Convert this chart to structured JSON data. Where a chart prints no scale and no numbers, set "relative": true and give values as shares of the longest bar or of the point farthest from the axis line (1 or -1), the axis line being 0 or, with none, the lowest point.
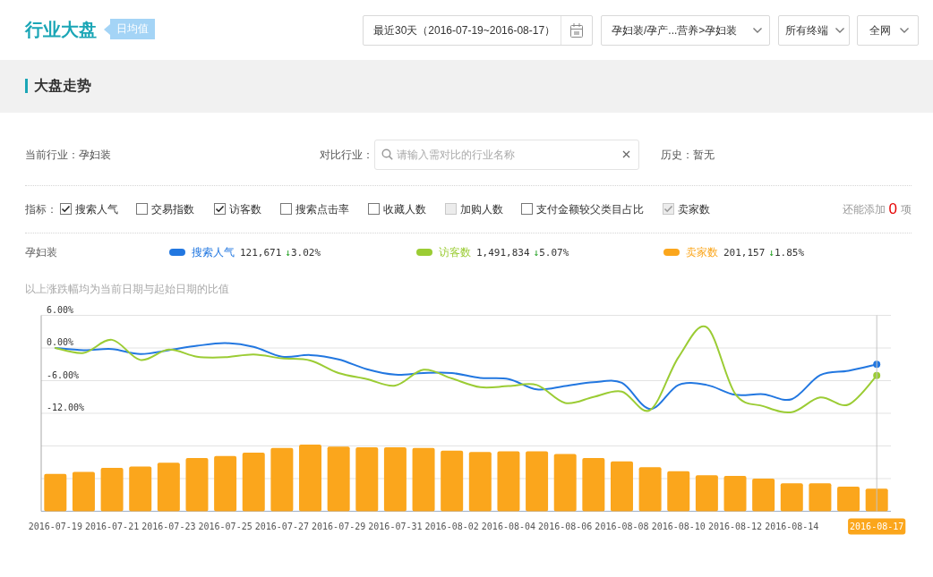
{
  "chart_data": [
    {
      "type": "line",
      "title": "行业大盘",
      "subtitle": "大盘走势",
      "categories": [
        "2016-07-19",
        null,
        "2016-07-21",
        null,
        "2016-07-23",
        null,
        "2016-07-25",
        null,
        "2016-07-27",
        null,
        "2016-07-29",
        null,
        "2016-07-31",
        null,
        "2016-08-02",
        null,
        "2016-08-04",
        null,
        "2016-08-06",
        null,
        "2016-08-08",
        null,
        "2016-08-10",
        null,
        "2016-08-12",
        null,
        "2016-08-14",
        null,
        null,
        "2016-08-17"
      ],
      "series": [
        {
          "name": "搜索人气",
          "color": "#2277e0",
          "values": [
            0,
            -0.4,
            -0.2,
            -1.1,
            -0.4,
            0.4,
            0.9,
            0.2,
            -1.6,
            -1.3,
            -2.1,
            -3.9,
            -4.9,
            -4.6,
            -4.6,
            -5.5,
            -5.7,
            -7.6,
            -7.0,
            -6.3,
            -6.4,
            -11.2,
            -6.8,
            -6.8,
            -8.6,
            -8.5,
            -9.4,
            -5.0,
            -4.2,
            -3.02
          ]
        },
        {
          "name": "访客数",
          "color": "#9bcc34",
          "values": [
            0,
            -0.9,
            1.5,
            -2.2,
            -0.3,
            -1.6,
            -1.7,
            -1.2,
            -1.9,
            -2.3,
            -4.6,
            -5.7,
            -6.9,
            -4.0,
            -5.6,
            -7.2,
            -7.0,
            -6.8,
            -10.1,
            -9.0,
            -8.0,
            -11.4,
            -1.7,
            3.8,
            -8.4,
            -10.7,
            -11.8,
            -9.1,
            -10.4,
            -5.07
          ]
        },
        {
          "type": "scatter",
          "values": [
            null,
            null,
            null,
            null,
            null,
            null,
            null,
            null,
            null,
            null,
            null,
            null,
            null,
            null,
            null,
            null,
            null,
            null,
            null,
            null,
            null,
            null,
            null,
            null,
            null,
            null,
            null,
            null,
            null,
            -3.02
          ],
          "color": "#2277e0",
          "marker": "circle"
        },
        {
          "type": "scatter",
          "values": [
            null,
            null,
            null,
            null,
            null,
            null,
            null,
            null,
            null,
            null,
            null,
            null,
            null,
            null,
            null,
            null,
            null,
            null,
            null,
            null,
            null,
            null,
            null,
            null,
            null,
            null,
            null,
            null,
            null,
            -5.07
          ],
          "color": "#9bcc34",
          "marker": "circle"
        }
      ],
      "ylim": [
        -30,
        6
      ],
      "yticks": [
        {
          "value": 6,
          "label": "6.00%"
        },
        {
          "value": 0,
          "label": "0.00%"
        },
        {
          "value": -6,
          "label": "-6.00%"
        },
        {
          "value": -12,
          "label": "-12.00%"
        },
        {
          "value": -18,
          "label": null
        },
        {
          "value": -24,
          "label": null
        }
      ],
      "grid": "y",
      "legend": "top",
      "tick_labels": "y",
      "ref_lines": [
        {
          "axis": "x",
          "value": "2016-08-17",
          "color": "#c4c4c4"
        }
      ],
      "annotations": [
        "日均值",
        "最近30天（2016-07-19~2016-08-17）",
        "孕妇装/孕产...营养>孕妇装",
        "所有终端",
        "全网",
        "当前行业：孕妇装",
        "对比行业：",
        "请输入需对比的行业名称",
        "历史：暂无",
        "指标：",
        "搜索人气",
        "交易指数",
        "访客数",
        "搜索点击率",
        "收藏人数",
        "加购人数",
        "支付金额较父类目占比",
        "卖家数",
        "还能添加",
        "0",
        "项",
        "孕妇装",
        "121,671",
        "↓3.02%",
        "1,491,834",
        "↓5.07%",
        "201,157",
        "↓1.85%",
        "以上涨跌幅均为当前日期与起始日期的比值"
      ]
    },
    {
      "type": "bar",
      "relative": true,
      "categories": [
        "2016-07-19",
        null,
        "2016-07-21",
        null,
        "2016-07-23",
        null,
        "2016-07-25",
        null,
        "2016-07-27",
        null,
        "2016-07-29",
        null,
        "2016-07-31",
        null,
        "2016-08-02",
        null,
        "2016-08-04",
        null,
        "2016-08-06",
        null,
        "2016-08-08",
        null,
        "2016-08-10",
        null,
        "2016-08-12",
        null,
        "2016-08-14",
        null,
        null,
        "2016-08-17"
      ],
      "series": [
        {
          "name": "卖家数",
          "color": "#fba61c",
          "values": [
            0.56,
            0.59,
            0.65,
            0.67,
            0.73,
            0.8,
            0.83,
            0.88,
            0.95,
            1,
            0.97,
            0.96,
            0.96,
            0.95,
            0.91,
            0.89,
            0.9,
            0.9,
            0.86,
            0.8,
            0.75,
            0.66,
            0.6,
            0.54,
            0.53,
            0.49,
            0.42,
            0.42,
            0.37,
            0.34
          ]
        }
      ],
      "legend": "top"
    }
  ]
}
